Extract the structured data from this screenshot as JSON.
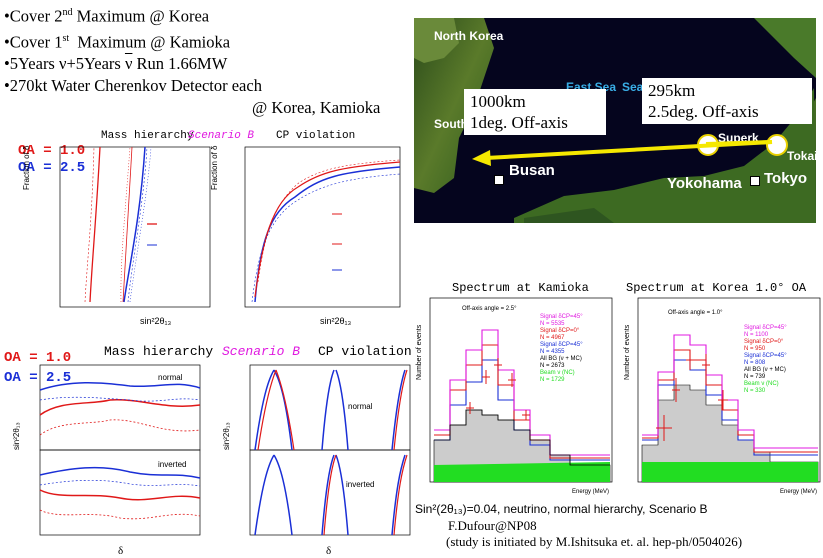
{
  "bullets": {
    "b1": "•Cover 2nd Maximum @ Korea",
    "b2": "•Cover 1st  Maximum @ Kamioka",
    "b3": "•5Years ν+5Years ν Run 1.66MW",
    "b4": "•270kt Water Cherenkov Detector each",
    "b5": "@ Korea, Kamioka"
  },
  "map": {
    "north_korea": "North Korea",
    "east_sea": "East Sea",
    "sea": "Sea",
    "south": "South",
    "busan": "Busan",
    "yokohama": "Yokohama",
    "tokyo": "Tokyo",
    "superk": "Superk",
    "tokai": "Tokai",
    "callout_left_1": "1000km",
    "callout_left_2": "1deg. Off-axis",
    "callout_right_1": "295km",
    "callout_right_2": "2.5deg. Off-axis"
  },
  "upper_plots": {
    "oa1": "OA = 1.0",
    "oa2": "OA = 2.5",
    "t_mass": "Mass hierarchy",
    "t_scen": "Scenario B",
    "t_cp": "CP violation",
    "ylabel": "Fraction of δ",
    "xlabel": "sin²2θ₁₃"
  },
  "lower_plots": {
    "oa1": "OA = 1.0",
    "oa2": "OA = 2.5",
    "t_mass": "Mass hierarchy",
    "t_scen": "Scenario B",
    "t_cp": "CP violation",
    "ylabel": "sin²2θ₁₃",
    "xlabel": "δ",
    "normal": "normal",
    "inverted": "inverted"
  },
  "spectra": {
    "kamioka_title": "Spectrum at Kamioka",
    "korea_title": "Spectrum at Korea 1.0° OA",
    "ylabel": "Number of events",
    "xlabel": "Energy (MeV)",
    "kamioka_offaxis": "Off-axis angle = 2.5°",
    "korea_offaxis": "Off-axis angle = 1.0°",
    "kamioka_legend": [
      "Signal δCP=45°",
      "N = 5535",
      "Signal δCP=0°",
      "N = 4967",
      "Signal δCP=45°",
      "N = 4355",
      "All BG (ν + MC)",
      "N = 2673",
      "Beam ν (NC)",
      "N = 1729"
    ],
    "korea_legend": [
      "Signal δCP=45°",
      "N = 1100",
      "Signal δCP=0°",
      "N = 950",
      "Signal δCP=45°",
      "N = 808",
      "All BG (ν + MC)",
      "N = 739",
      "Beam ν (NC)",
      "N = 330"
    ]
  },
  "footer": {
    "line1": "Sin²(2θ₁₃)=0.04, neutrino, normal hierarchy, Scenario B",
    "line2": "F.Dufour@NP08",
    "line3": "(study is initiated by M.Ishitsuka et. al. hep-ph/0504026)"
  },
  "colors": {
    "red": "#e01818",
    "blue": "#1a2fd6",
    "magenta": "#e019e0",
    "green": "#22dd22"
  }
}
